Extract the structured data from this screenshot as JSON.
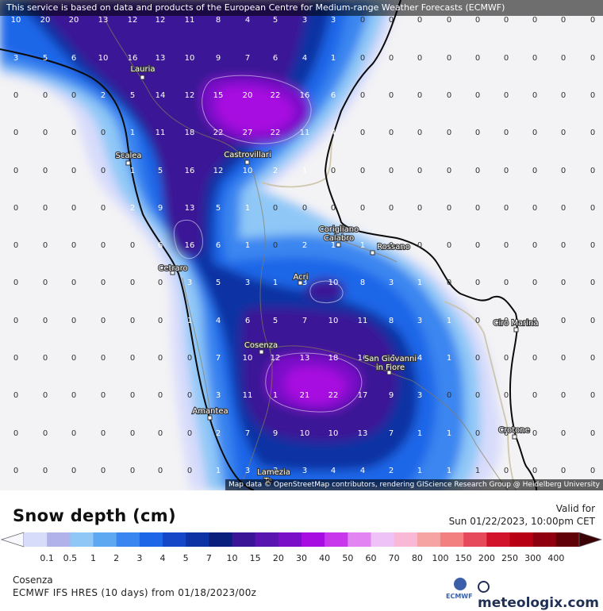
{
  "banner": "This service is based on data and products of the European Centre for Medium-range Weather Forecasts (ECMWF)",
  "attribution": "Map data © OpenStreetMap contributors, rendering GIScience Research Group @ Heidelberg University",
  "legend": {
    "title": "Snow depth (cm)",
    "ticks": [
      "0.1",
      "0.5",
      "1",
      "2",
      "3",
      "4",
      "5",
      "7",
      "10",
      "15",
      "20",
      "30",
      "40",
      "50",
      "60",
      "70",
      "80",
      "100",
      "150",
      "200",
      "250",
      "300",
      "400"
    ],
    "colors": [
      "#d8dcfb",
      "#b2b2ea",
      "#8fc8f7",
      "#5ea8f2",
      "#3a86f0",
      "#1e66e8",
      "#1447c7",
      "#0c32a3",
      "#0a1f7c",
      "#3a1696",
      "#5a14b0",
      "#7a0fc8",
      "#a70de0",
      "#c937ec",
      "#e285f2",
      "#efc2f7",
      "#f9b8d6",
      "#f6a3a3",
      "#f28080",
      "#e6495b",
      "#d1142c",
      "#b80014",
      "#8e0010",
      "#600008"
    ]
  },
  "valid": {
    "label": "Valid for",
    "datetime": "Sun 01/22/2023, 10:00pm CET"
  },
  "location": "Cosenza",
  "model": "ECMWF IFS HRES (10 days) from 01/18/2023/00z",
  "brand": {
    "ecmwf": "ECMWF",
    "meteologix": "meteologix.com"
  },
  "towns": [
    "Lauria",
    "Scalea",
    "Castrovillari",
    "Corigliano Calabro",
    "Rossano",
    "Acri",
    "Cetraro",
    "Cosenza",
    "San Giovanni in Fiore",
    "Ciro Marina",
    "Amantea",
    "Crotone",
    "Lamezia Terme"
  ],
  "grid": {
    "cols": [
      20,
      57,
      93,
      130,
      167,
      202,
      239,
      275,
      312,
      347,
      384,
      420,
      457,
      493,
      529,
      566,
      602,
      638,
      674,
      710,
      747
    ],
    "rows": [
      [
        10,
        20,
        20,
        13,
        12,
        12,
        11,
        8,
        4,
        5,
        3,
        3,
        0,
        0,
        0,
        0,
        0,
        0,
        0,
        0,
        0
      ],
      [
        3,
        5,
        6,
        10,
        16,
        13,
        10,
        9,
        7,
        6,
        4,
        1,
        0,
        0,
        0,
        0,
        0,
        0,
        0,
        0,
        0
      ],
      [
        0,
        0,
        0,
        2,
        5,
        14,
        12,
        15,
        20,
        22,
        16,
        6,
        0,
        0,
        0,
        0,
        0,
        0,
        0,
        0,
        0
      ],
      [
        0,
        0,
        0,
        0,
        1,
        11,
        18,
        22,
        27,
        22,
        11,
        4,
        0,
        0,
        0,
        0,
        0,
        0,
        0,
        0,
        0
      ],
      [
        0,
        0,
        0,
        0,
        1,
        5,
        16,
        12,
        10,
        2,
        1,
        0,
        0,
        0,
        0,
        0,
        0,
        0,
        0,
        0,
        0
      ],
      [
        0,
        0,
        0,
        0,
        2,
        9,
        13,
        5,
        1,
        0,
        0,
        0,
        0,
        0,
        0,
        0,
        0,
        0,
        0,
        0,
        0
      ],
      [
        0,
        0,
        0,
        0,
        0,
        6,
        16,
        6,
        1,
        0,
        2,
        1,
        1,
        0,
        0,
        0,
        0,
        0,
        0,
        0,
        0
      ],
      [
        0,
        0,
        0,
        0,
        0,
        0,
        3,
        5,
        3,
        1,
        3,
        10,
        8,
        3,
        1,
        0,
        0,
        0,
        0,
        0,
        0
      ],
      [
        0,
        0,
        0,
        0,
        0,
        0,
        1,
        4,
        6,
        5,
        7,
        10,
        11,
        8,
        3,
        1,
        0,
        0,
        0,
        0,
        0
      ],
      [
        0,
        0,
        0,
        0,
        0,
        0,
        0,
        7,
        10,
        12,
        13,
        18,
        16,
        11,
        4,
        1,
        0,
        0,
        0,
        0,
        0
      ],
      [
        0,
        0,
        0,
        0,
        0,
        0,
        0,
        3,
        11,
        1,
        21,
        22,
        17,
        9,
        3,
        0,
        0,
        0,
        0,
        0,
        0
      ],
      [
        0,
        0,
        0,
        0,
        0,
        0,
        0,
        2,
        7,
        9,
        10,
        10,
        13,
        7,
        1,
        1,
        0,
        0,
        0,
        0,
        0
      ],
      [
        0,
        0,
        0,
        0,
        0,
        0,
        0,
        1,
        3,
        3,
        3,
        4,
        4,
        2,
        1,
        1,
        1,
        0,
        0,
        0,
        0
      ]
    ]
  }
}
